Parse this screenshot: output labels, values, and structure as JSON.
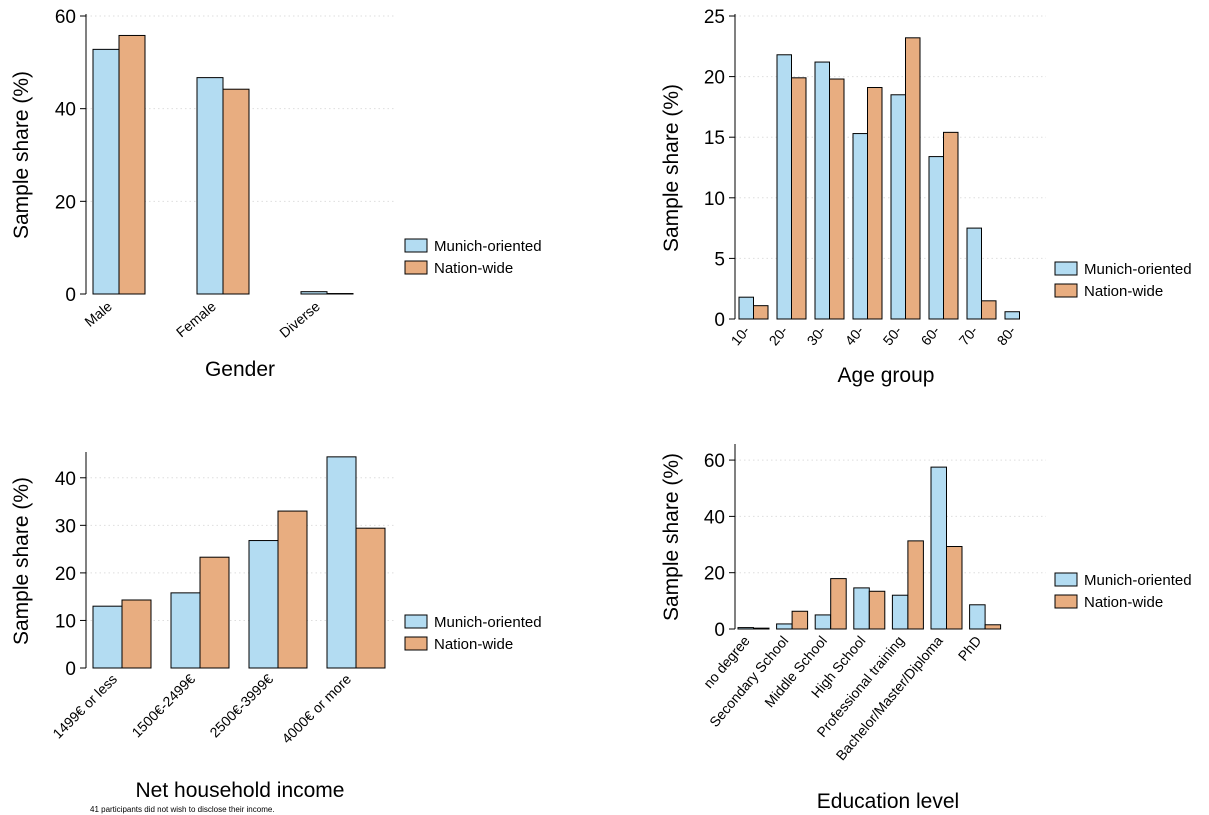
{
  "colors": {
    "munich": "#b3dcf2",
    "nation": "#e8ad80",
    "edge": "#000000",
    "grid": "#dedede"
  },
  "chart_data": [
    {
      "type": "bar",
      "xlabel": "Gender",
      "ylabel": "Sample share (%)",
      "ylim": [
        0,
        60
      ],
      "yticks": [
        0,
        20,
        40,
        60
      ],
      "grid": true,
      "legend_position": "right",
      "categories": [
        "Male",
        "Female",
        "Diverse"
      ],
      "series": [
        {
          "name": "Munich-oriented",
          "values": [
            52.8,
            46.7,
            0.5
          ]
        },
        {
          "name": "Nation-wide",
          "values": [
            55.8,
            44.2,
            0.1
          ]
        }
      ]
    },
    {
      "type": "bar",
      "xlabel": "Age group",
      "ylabel": "Sample share (%)",
      "ylim": [
        0,
        25
      ],
      "yticks": [
        0,
        5,
        10,
        15,
        20,
        25
      ],
      "grid": true,
      "legend_position": "right",
      "categories": [
        "10-",
        "20-",
        "30-",
        "40-",
        "50-",
        "60-",
        "70-",
        "80-"
      ],
      "series": [
        {
          "name": "Munich-oriented",
          "values": [
            1.8,
            21.8,
            21.2,
            15.3,
            18.5,
            13.4,
            7.5,
            0.6
          ]
        },
        {
          "name": "Nation-wide",
          "values": [
            1.1,
            19.9,
            19.8,
            19.1,
            23.2,
            15.4,
            1.5,
            0
          ]
        }
      ]
    },
    {
      "type": "bar",
      "xlabel": "Net household income",
      "ylabel": "Sample share (%)",
      "ylim": [
        0,
        45
      ],
      "yticks": [
        0,
        10,
        20,
        30,
        40
      ],
      "grid": true,
      "legend_position": "right",
      "categories": [
        "1499€ or less",
        "1500€-2499€",
        "2500€-3999€",
        "4000€ or more"
      ],
      "series": [
        {
          "name": "Munich-oriented",
          "values": [
            13.0,
            15.8,
            26.8,
            44.4
          ]
        },
        {
          "name": "Nation-wide",
          "values": [
            14.3,
            23.3,
            33.0,
            29.4
          ]
        }
      ],
      "note": "41 participants did not wish to disclose their income."
    },
    {
      "type": "bar",
      "xlabel": "Education level",
      "ylabel": "Sample share (%)",
      "ylim": [
        0,
        65
      ],
      "yticks": [
        0,
        20,
        40,
        60
      ],
      "grid": true,
      "legend_position": "right",
      "categories": [
        "no degree",
        "Secondary School",
        "Middle School",
        "High School",
        "Professional training",
        "Bachelor/Master/Diploma",
        "PhD"
      ],
      "series": [
        {
          "name": "Munich-oriented",
          "values": [
            0.5,
            1.8,
            5.0,
            14.6,
            12.0,
            57.5,
            8.6
          ]
        },
        {
          "name": "Nation-wide",
          "values": [
            0.3,
            6.3,
            17.9,
            13.4,
            31.3,
            29.3,
            1.5
          ]
        }
      ]
    }
  ]
}
